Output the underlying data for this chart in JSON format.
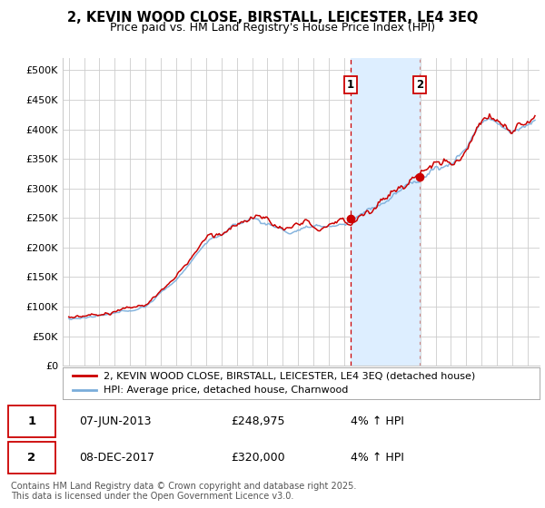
{
  "title": "2, KEVIN WOOD CLOSE, BIRSTALL, LEICESTER, LE4 3EQ",
  "subtitle": "Price paid vs. HM Land Registry's House Price Index (HPI)",
  "ylim": [
    0,
    520000
  ],
  "yticks": [
    0,
    50000,
    100000,
    150000,
    200000,
    250000,
    300000,
    350000,
    400000,
    450000,
    500000
  ],
  "ytick_labels": [
    "£0",
    "£50K",
    "£100K",
    "£150K",
    "£200K",
    "£250K",
    "£300K",
    "£350K",
    "£400K",
    "£450K",
    "£500K"
  ],
  "xlim_left": 1994.6,
  "xlim_right": 2025.8,
  "sale1_date": 2013.44,
  "sale1_price": 248975,
  "sale1_label": "1",
  "sale1_text": "07-JUN-2013",
  "sale1_amount": "£248,975",
  "sale1_hpi": "4% ↑ HPI",
  "sale2_date": 2017.94,
  "sale2_price": 320000,
  "sale2_label": "2",
  "sale2_text": "08-DEC-2017",
  "sale2_amount": "£320,000",
  "sale2_hpi": "4% ↑ HPI",
  "line_color_red": "#cc0000",
  "line_color_blue": "#7aaddb",
  "shade_color": "#ddeeff",
  "grid_color": "#cccccc",
  "background_color": "#ffffff",
  "legend_label_red": "2, KEVIN WOOD CLOSE, BIRSTALL, LEICESTER, LE4 3EQ (detached house)",
  "legend_label_blue": "HPI: Average price, detached house, Charnwood",
  "footer_text": "Contains HM Land Registry data © Crown copyright and database right 2025.\nThis data is licensed under the Open Government Licence v3.0.",
  "title_fontsize": 10.5,
  "subtitle_fontsize": 9,
  "tick_fontsize": 8,
  "legend_fontsize": 8,
  "footer_fontsize": 7
}
